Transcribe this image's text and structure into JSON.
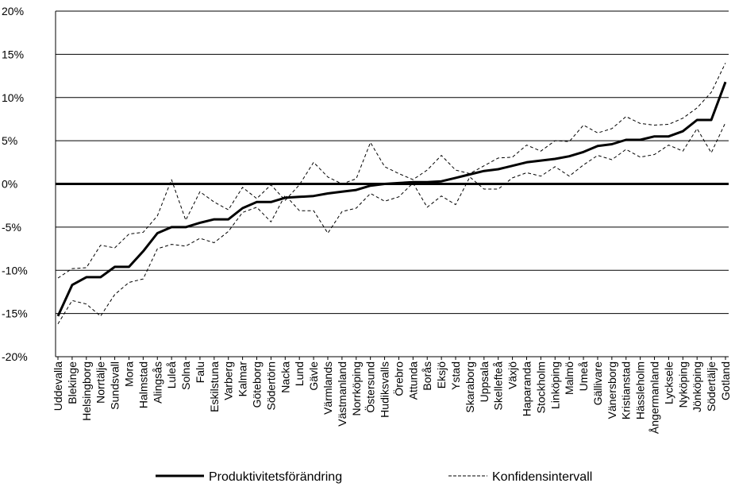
{
  "chart_data": {
    "type": "line",
    "title": "",
    "xlabel": "",
    "ylabel": "",
    "ylim": [
      -20,
      20
    ],
    "yticks": [
      -20,
      -15,
      -10,
      -5,
      0,
      5,
      10,
      15,
      20
    ],
    "ytick_labels": [
      "-20%",
      "-15%",
      "-10%",
      "-5%",
      "0%",
      "5%",
      "10%",
      "15%",
      "20%"
    ],
    "grid": true,
    "legend_position": "bottom",
    "categories": [
      "Uddevalla",
      "Blekinge",
      "Helsingborg",
      "Norrtälje",
      "Sundsvall",
      "Mora",
      "Halmstad",
      "Alingsås",
      "Luleå",
      "Solna",
      "Falu",
      "Eskilstuna",
      "Varberg",
      "Kalmar",
      "Göteborg",
      "Södertörn",
      "Nacka",
      "Lund",
      "Gävle",
      "Värmlands",
      "Västmanland",
      "Norrköping",
      "Östersund",
      "Hudiksvalls",
      "Örebro",
      "Attunda",
      "Borås",
      "Eksjö",
      "Ystad",
      "Skaraborg",
      "Uppsala",
      "Skellefteå",
      "Växjö",
      "Haparanda",
      "Stockholm",
      "Linköping",
      "Malmö",
      "Umeå",
      "Gällivare",
      "Vänersborg",
      "Kristianstad",
      "Hässleholm",
      "Ångermanland",
      "Lycksele",
      "Nyköping",
      "Jönköping",
      "Södertälje",
      "Gotland"
    ],
    "series": [
      {
        "name": "Produktivitetsförändring",
        "style": "solid-thick",
        "color": "#000000",
        "values": [
          -15.3,
          -11.7,
          -10.8,
          -10.8,
          -9.6,
          -9.6,
          -7.8,
          -5.7,
          -5.0,
          -5.0,
          -4.5,
          -4.1,
          -4.1,
          -2.8,
          -2.1,
          -2.1,
          -1.6,
          -1.5,
          -1.4,
          -1.1,
          -0.9,
          -0.7,
          -0.2,
          0.0,
          0.1,
          0.2,
          0.2,
          0.3,
          0.7,
          1.1,
          1.5,
          1.7,
          2.1,
          2.5,
          2.7,
          2.9,
          3.2,
          3.7,
          4.4,
          4.6,
          5.1,
          5.1,
          5.5,
          5.5,
          6.1,
          7.4,
          7.4,
          11.8
        ]
      },
      {
        "name": "Konfidensintervall",
        "style": "dashed",
        "color": "#000000",
        "values": [
          -10.9,
          -9.8,
          -9.7,
          -7.1,
          -7.4,
          -5.8,
          -5.6,
          -3.7,
          0.5,
          -4.2,
          -0.9,
          -2.1,
          -3.0,
          -0.4,
          -1.7,
          -0.1,
          -1.9,
          -0.1,
          2.5,
          0.8,
          0.0,
          0.6,
          4.8,
          2.0,
          1.2,
          0.5,
          1.6,
          3.3,
          1.6,
          1.2,
          2.1,
          3.0,
          3.1,
          4.5,
          3.8,
          5.0,
          4.9,
          6.8,
          5.9,
          6.4,
          7.8,
          7.0,
          6.8,
          6.9,
          7.6,
          8.8,
          10.6,
          14.0
        ]
      },
      {
        "name": "",
        "style": "dashed",
        "color": "#000000",
        "values": [
          -16.2,
          -13.5,
          -13.9,
          -15.3,
          -12.8,
          -11.4,
          -11.0,
          -7.5,
          -7.0,
          -7.2,
          -6.3,
          -6.8,
          -5.5,
          -3.3,
          -2.7,
          -4.4,
          -1.3,
          -3.1,
          -3.1,
          -5.7,
          -3.2,
          -2.8,
          -1.1,
          -2.0,
          -1.5,
          0.1,
          -2.7,
          -1.4,
          -2.4,
          0.8,
          -0.6,
          -0.6,
          0.7,
          1.3,
          0.9,
          2.0,
          0.9,
          2.2,
          3.3,
          2.8,
          4.0,
          3.1,
          3.4,
          4.5,
          3.8,
          6.4,
          3.6,
          7.1
        ]
      }
    ],
    "legend": [
      {
        "label": "Produktivitetsförändring",
        "style": "solid-thick"
      },
      {
        "label": "Konfidensintervall",
        "style": "dashed"
      }
    ]
  }
}
